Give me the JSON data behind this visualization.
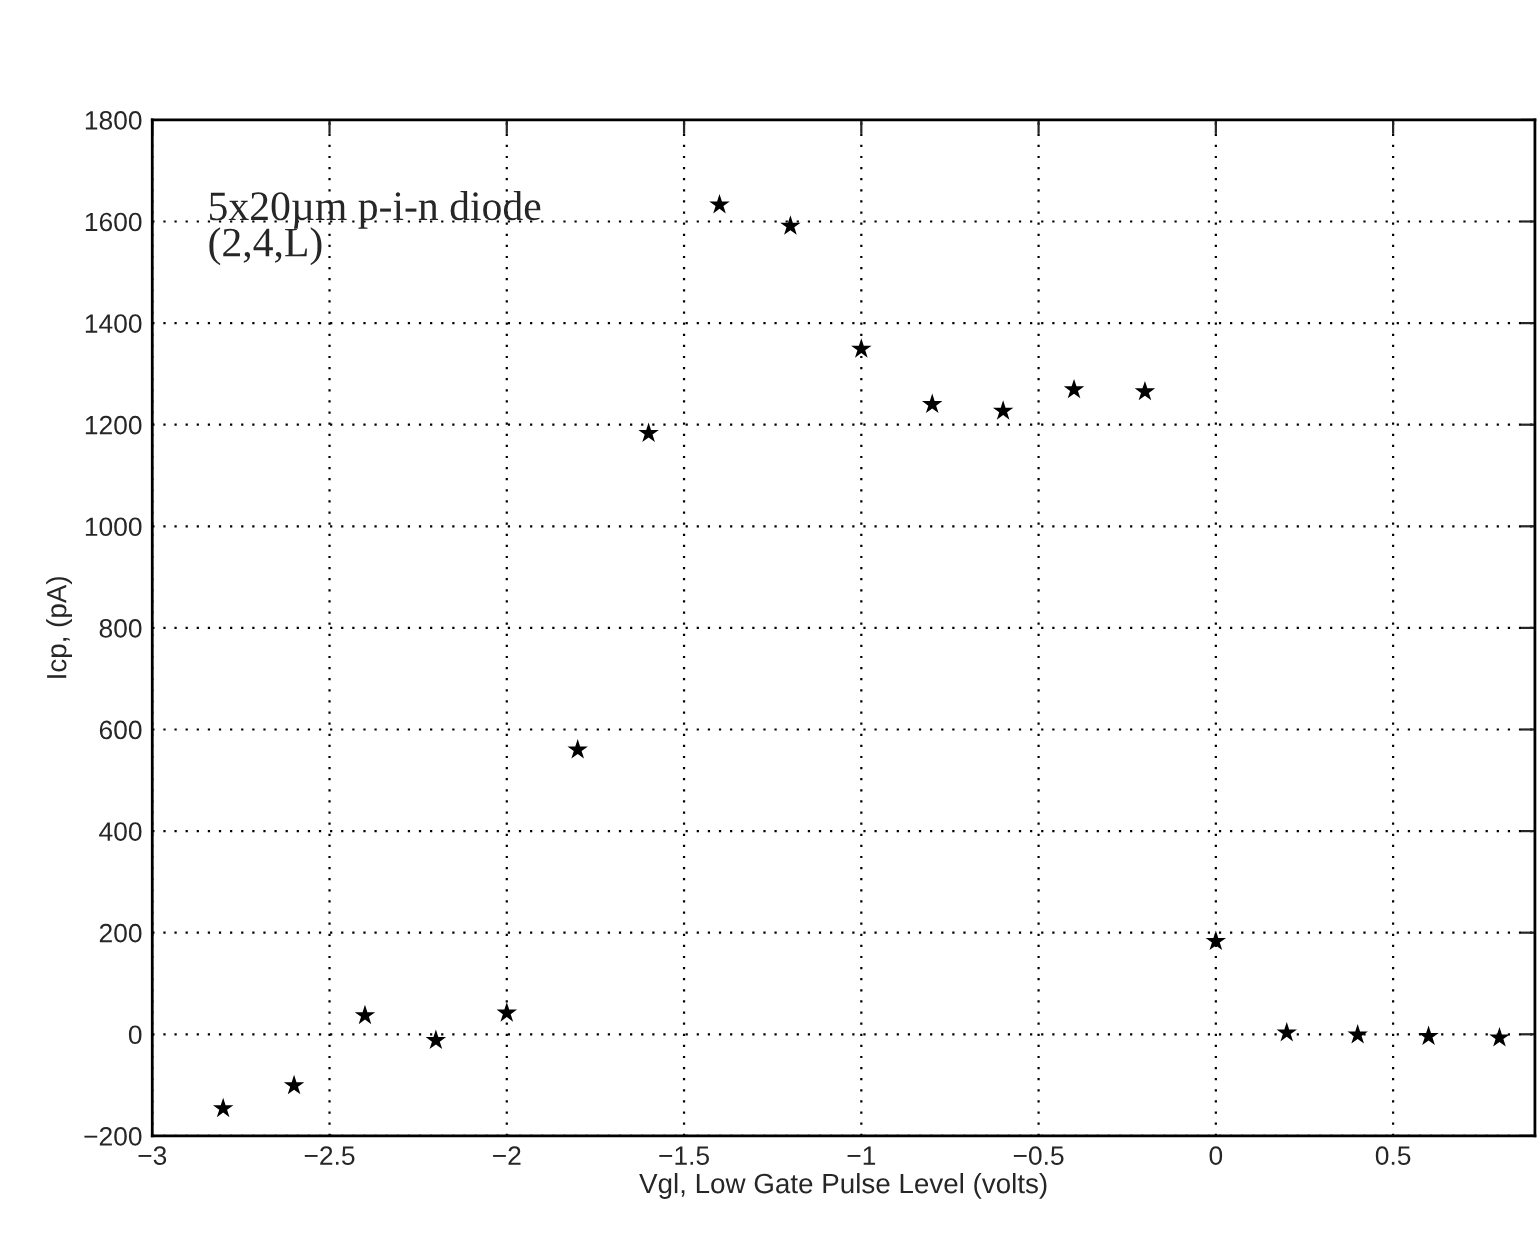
{
  "chart_data": {
    "type": "scatter",
    "xlabel": "Vgl, Low Gate Pulse Level (volts)",
    "ylabel": "Icp, (pA)",
    "annotations": [
      "5x20µm p-i-n diode\n(2,4,L)"
    ],
    "x": [
      -2.8,
      -2.6,
      -2.4,
      -2.2,
      -2.0,
      -1.8,
      -1.6,
      -1.4,
      -1.2,
      -1.0,
      -0.8,
      -0.6,
      -0.4,
      -0.2,
      0,
      0.2,
      0.4,
      0.6,
      0.8
    ],
    "series": [
      {
        "color": "#000000",
        "values": [
          -146,
          -101,
          37,
          -12,
          42,
          560,
          1183,
          1633,
          1591,
          1349,
          1240,
          1227,
          1269,
          1265,
          183,
          3,
          -1,
          -4,
          -7
        ]
      }
    ],
    "xlim": [
      -3,
      0.9
    ],
    "ylim": [
      -200,
      1800
    ],
    "xticks": [
      {
        "value": -3,
        "label": "−3"
      },
      {
        "value": -2.5,
        "label": "−2.5"
      },
      {
        "value": -2,
        "label": "−2"
      },
      {
        "value": -1.5,
        "label": "−1.5"
      },
      {
        "value": -1,
        "label": "−1"
      },
      {
        "value": -0.5,
        "label": "−0.5"
      },
      0,
      0.5
    ],
    "yticks": [
      {
        "value": -200,
        "label": "−200"
      },
      0,
      200,
      400,
      600,
      800,
      1000,
      1200,
      1400,
      1600,
      1800
    ],
    "grid": true,
    "marker": "star"
  }
}
